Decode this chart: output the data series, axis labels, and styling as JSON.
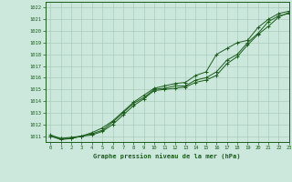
{
  "title": "Graphe pression niveau de la mer (hPa)",
  "bg_color": "#cce8dd",
  "grid_color": "#aaccbb",
  "line_color": "#1a5c1a",
  "xlim": [
    -0.5,
    23
  ],
  "ylim": [
    1010.5,
    1022.5
  ],
  "yticks": [
    1011,
    1012,
    1013,
    1014,
    1015,
    1016,
    1017,
    1018,
    1019,
    1020,
    1021,
    1022
  ],
  "xticks": [
    0,
    1,
    2,
    3,
    4,
    5,
    6,
    7,
    8,
    9,
    10,
    11,
    12,
    13,
    14,
    15,
    16,
    17,
    18,
    19,
    20,
    21,
    22,
    23
  ],
  "series1": [
    1011.0,
    1010.8,
    1010.8,
    1011.0,
    1011.2,
    1011.5,
    1012.2,
    1013.0,
    1013.8,
    1014.3,
    1015.0,
    1015.1,
    1015.3,
    1015.3,
    1015.8,
    1016.0,
    1016.5,
    1017.5,
    1018.0,
    1019.0,
    1019.8,
    1020.8,
    1021.3,
    1021.5
  ],
  "series2": [
    1011.1,
    1010.8,
    1010.9,
    1011.0,
    1011.3,
    1011.7,
    1012.3,
    1013.1,
    1013.9,
    1014.5,
    1015.1,
    1015.3,
    1015.5,
    1015.6,
    1016.2,
    1016.5,
    1018.0,
    1018.5,
    1019.0,
    1019.2,
    1020.3,
    1021.0,
    1021.5,
    1021.7
  ],
  "series3": [
    1011.0,
    1010.7,
    1010.8,
    1011.0,
    1011.1,
    1011.4,
    1012.0,
    1012.8,
    1013.6,
    1014.2,
    1014.9,
    1015.0,
    1015.1,
    1015.2,
    1015.6,
    1015.8,
    1016.2,
    1017.2,
    1017.8,
    1018.8,
    1019.7,
    1020.4,
    1021.2,
    1021.6
  ]
}
